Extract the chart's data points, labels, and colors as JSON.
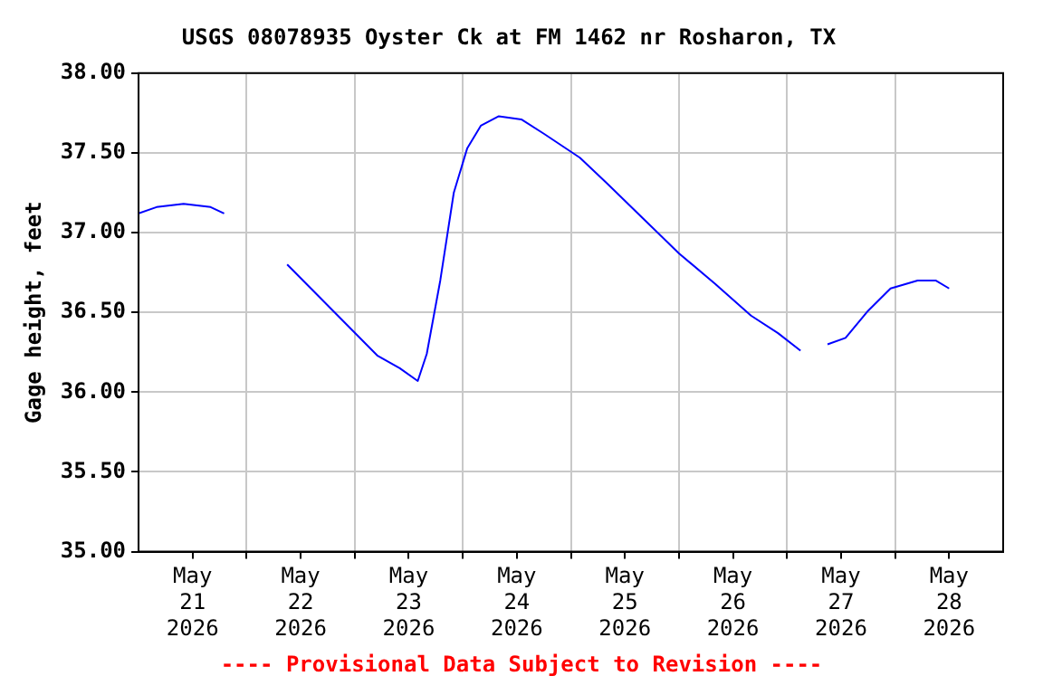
{
  "chart_data": {
    "type": "line",
    "title": "USGS 08078935 Oyster Ck at FM 1462 nr Rosharon, TX",
    "ylabel": "Gage height, feet",
    "annotations": [
      "---- Provisional Data Subject to Revision ----"
    ],
    "series": [
      {
        "color": "#0000ff",
        "x": [
          "2026-05-21T00:00",
          "2026-05-21T04:00",
          "2026-05-21T10:00",
          "2026-05-21T16:00",
          "2026-05-21T19:00",
          "2026-05-22T03:00",
          "2026-05-22T09:00",
          "2026-05-23T05:00",
          "2026-05-23T10:00",
          "2026-05-23T14:00",
          "2026-05-23T16:00",
          "2026-05-23T19:00",
          "2026-05-23T22:00",
          "2026-05-24T01:00",
          "2026-05-24T04:00",
          "2026-05-24T08:00",
          "2026-05-24T13:00",
          "2026-05-24T18:00",
          "2026-05-25T02:00",
          "2026-05-25T08:00",
          "2026-05-25T16:00",
          "2026-05-26T00:00",
          "2026-05-26T08:00",
          "2026-05-26T16:00",
          "2026-05-26T22:00",
          "2026-05-27T03:00",
          "2026-05-27T06:00",
          "2026-05-27T09:00",
          "2026-05-27T13:00",
          "2026-05-27T18:00",
          "2026-05-27T23:00",
          "2026-05-28T05:00",
          "2026-05-28T09:00",
          "2026-05-28T12:00"
        ],
        "values": [
          37.12,
          37.16,
          37.18,
          37.16,
          37.12,
          null,
          36.8,
          36.23,
          36.15,
          36.07,
          36.24,
          36.7,
          37.25,
          37.53,
          37.67,
          37.73,
          37.71,
          37.62,
          37.47,
          37.31,
          37.09,
          36.87,
          36.68,
          36.48,
          36.37,
          36.26,
          null,
          36.3,
          36.34,
          36.51,
          36.65,
          36.7,
          36.7,
          36.65
        ]
      }
    ],
    "xlim": [
      "2026-05-21T00:00",
      "2026-05-29T00:00"
    ],
    "xticks": [
      {
        "value": "2026-05-21T12:00",
        "label": "May\n21\n2026"
      },
      {
        "value": "2026-05-22T00:00",
        "label": null
      },
      {
        "value": "2026-05-22T12:00",
        "label": "May\n22\n2026"
      },
      {
        "value": "2026-05-23T00:00",
        "label": null
      },
      {
        "value": "2026-05-23T12:00",
        "label": "May\n23\n2026"
      },
      {
        "value": "2026-05-24T00:00",
        "label": null
      },
      {
        "value": "2026-05-24T12:00",
        "label": "May\n24\n2026"
      },
      {
        "value": "2026-05-25T00:00",
        "label": null
      },
      {
        "value": "2026-05-25T12:00",
        "label": "May\n25\n2026"
      },
      {
        "value": "2026-05-26T00:00",
        "label": null
      },
      {
        "value": "2026-05-26T12:00",
        "label": "May\n26\n2026"
      },
      {
        "value": "2026-05-27T00:00",
        "label": null
      },
      {
        "value": "2026-05-27T12:00",
        "label": "May\n27\n2026"
      },
      {
        "value": "2026-05-28T00:00",
        "label": null
      },
      {
        "value": "2026-05-28T12:00",
        "label": "May\n28\n2026"
      }
    ],
    "ylim": [
      35,
      38
    ],
    "yticks": [
      {
        "value": 35,
        "label": "35.00"
      },
      {
        "value": 35.5,
        "label": "35.50"
      },
      {
        "value": 36,
        "label": "36.00"
      },
      {
        "value": 36.5,
        "label": "36.50"
      },
      {
        "value": 37,
        "label": "37.00"
      },
      {
        "value": 37.5,
        "label": "37.50"
      },
      {
        "value": 38,
        "label": "38.00"
      }
    ],
    "grid": true,
    "legend": false,
    "marker": "none",
    "line_style": "solid"
  }
}
